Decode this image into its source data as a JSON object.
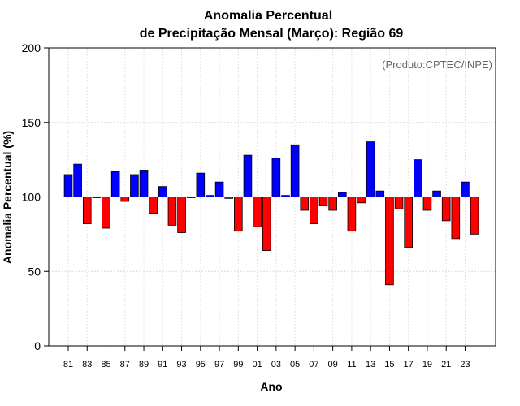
{
  "chart_data": {
    "type": "bar",
    "title": "Anomalia Percentual",
    "subtitle": "de Precipitação Mensal (Março): Região 69",
    "xlabel": "Ano",
    "ylabel": "Anomalia Percentual (%)",
    "source": "(Produto:CPTEC/INPE)",
    "ylim": [
      0,
      200
    ],
    "yticks": [
      0,
      50,
      100,
      150,
      200
    ],
    "baseline": 100,
    "grid": true,
    "colors": {
      "above": "#0000ff",
      "below": "#ff0000",
      "outline": "#000000"
    },
    "categories": [
      "1981",
      "1982",
      "1983",
      "1984",
      "1985",
      "1986",
      "1987",
      "1988",
      "1989",
      "1990",
      "1991",
      "1992",
      "1993",
      "1994",
      "1995",
      "1996",
      "1997",
      "1998",
      "1999",
      "2000",
      "2001",
      "2002",
      "2003",
      "2004",
      "2005",
      "2006",
      "2007",
      "2008",
      "2009",
      "2010",
      "2011",
      "2012",
      "2013",
      "2014",
      "2015",
      "2016",
      "2017",
      "2018",
      "2019",
      "2020",
      "2021",
      "2022",
      "2023",
      "2024"
    ],
    "xtick_labels": [
      "81",
      "83",
      "85",
      "87",
      "89",
      "91",
      "93",
      "95",
      "97",
      "99",
      "01",
      "03",
      "05",
      "07",
      "09",
      "11",
      "13",
      "15",
      "17",
      "19",
      "21",
      "23"
    ],
    "values": [
      115,
      122,
      82,
      100,
      79,
      117,
      97,
      115,
      118,
      89,
      107,
      81,
      76,
      100,
      116,
      101,
      110,
      99,
      77,
      128,
      80,
      64,
      126,
      101,
      135,
      91,
      82,
      94,
      91,
      103,
      77,
      96,
      137,
      104,
      41,
      92,
      66,
      125,
      91,
      104,
      84,
      72,
      110,
      75
    ]
  }
}
